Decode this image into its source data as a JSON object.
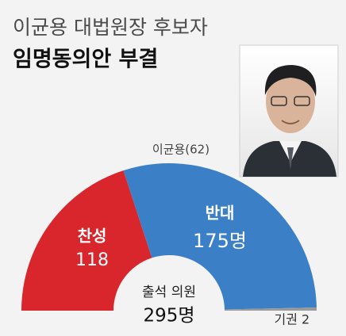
{
  "chart_data": {
    "type": "semicircle",
    "title": "이균용 대법원장 후보자",
    "subtitle": "임명동의안 부결",
    "annotation": "이균용(62)",
    "categories": [
      "찬성",
      "반대",
      "기권"
    ],
    "values": [
      118,
      175,
      2
    ],
    "value_labels": [
      "118",
      "175명",
      "2"
    ],
    "colors": [
      "#d8262c",
      "#3b80c6",
      "#9a9a9a"
    ],
    "total": {
      "name": "출석 의원",
      "value": 295,
      "value_label": "295명"
    }
  }
}
